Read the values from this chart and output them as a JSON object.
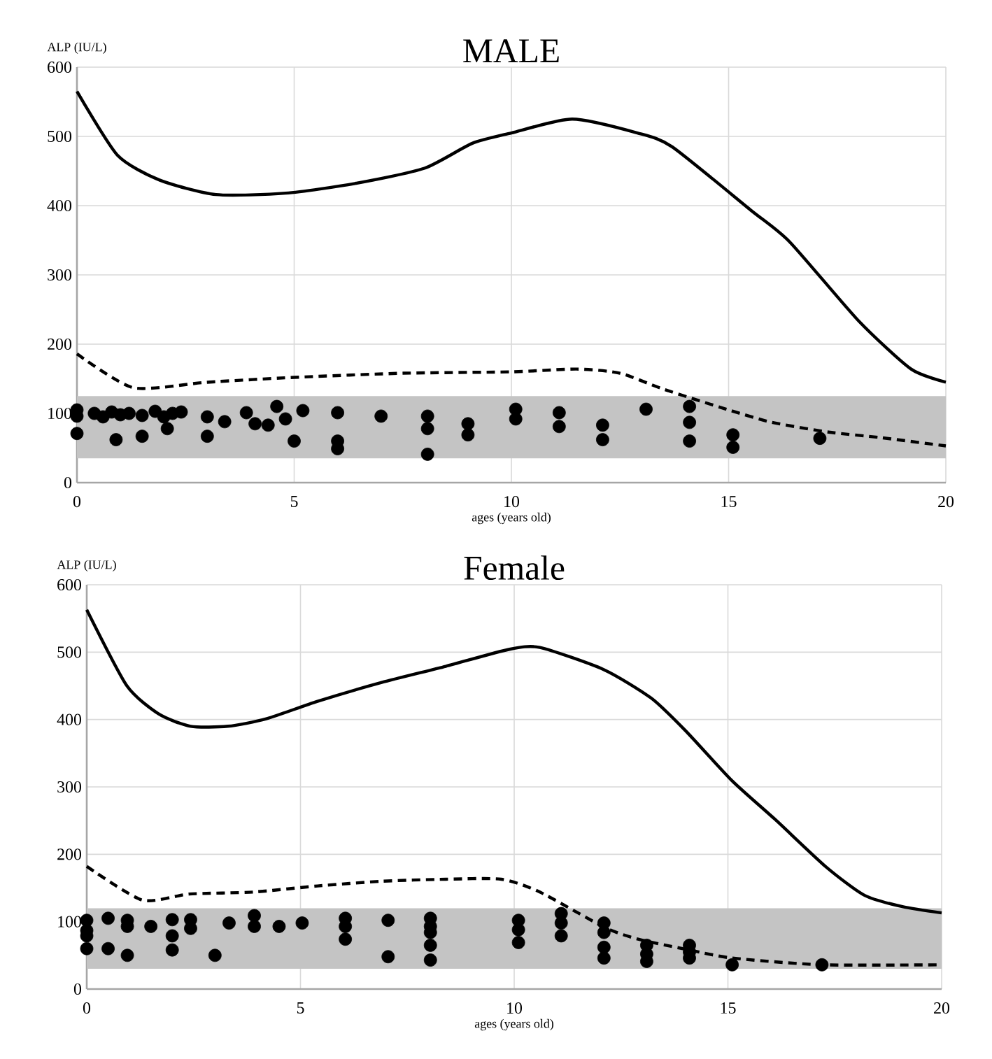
{
  "chart_data": [
    {
      "type": "line",
      "title": "MALE",
      "xlabel": "ages (years old)",
      "ylabel": "ALP (IU/L)",
      "xlim": [
        0,
        20
      ],
      "ylim": [
        0,
        600
      ],
      "xticks": [
        0,
        5,
        10,
        15,
        20
      ],
      "yticks": [
        0,
        100,
        200,
        300,
        400,
        500,
        600
      ],
      "grid": true,
      "bands": [
        {
          "axis": "y",
          "from": 35,
          "to": 125,
          "color": "#c4c4c4"
        }
      ],
      "series": [
        {
          "color": "#000000",
          "line_style": "solid",
          "x": [
            0,
            0.93,
            1.9,
            3.2,
            4.8,
            6.4,
            8.0,
            9.1,
            10.0,
            11.4,
            12.9,
            13.7,
            15.5,
            16.4,
            18.0,
            19.2,
            20
          ],
          "values": [
            565,
            473,
            437,
            416,
            418,
            432,
            454,
            490,
            505,
            525,
            505,
            485,
            394,
            348,
            233,
            164,
            145
          ]
        },
        {
          "color": "#000000",
          "line_style": "dashed",
          "x": [
            0,
            1.3,
            3,
            5,
            7.5,
            10,
            11.5,
            12.5,
            13.5,
            15,
            16,
            17.3,
            18.5,
            20
          ],
          "values": [
            186,
            137,
            145,
            152,
            158,
            160,
            164,
            158,
            135,
            105,
            87,
            73,
            65,
            53
          ]
        },
        {
          "type": "scatter",
          "color": "#000000",
          "marker": "circle",
          "x": [
            0,
            0,
            0,
            0.4,
            0.6,
            0.8,
            0.9,
            1.0,
            1.2,
            1.5,
            1.5,
            1.8,
            2.0,
            2.08,
            2.2,
            2.4,
            3.0,
            3.0,
            3.4,
            3.9,
            4.1,
            4.4,
            4.6,
            4.8,
            5.0,
            5.2,
            6.0,
            6.0,
            6.0,
            7.0,
            8.07,
            8.07,
            8.07,
            9.0,
            9.0,
            10.1,
            10.1,
            11.1,
            11.1,
            12.1,
            12.1,
            13.1,
            14.1,
            14.1,
            14.1,
            15.1,
            15.1,
            17.1
          ],
          "values": [
            105,
            96,
            71,
            100,
            95,
            102,
            62,
            98,
            100,
            97,
            67,
            103,
            95,
            78,
            100,
            102,
            95,
            67,
            88,
            101,
            85,
            83,
            110,
            92,
            60,
            104,
            101,
            60,
            49,
            96,
            96,
            78,
            41,
            85,
            69,
            106,
            92,
            101,
            81,
            83,
            62,
            106,
            110,
            87,
            60,
            69,
            51,
            64
          ]
        }
      ]
    },
    {
      "type": "line",
      "title": "Female",
      "xlabel": "ages (years old)",
      "ylabel": "ALP (IU/L)",
      "xlim": [
        0,
        20
      ],
      "ylim": [
        0,
        600
      ],
      "xticks": [
        0,
        5,
        10,
        15,
        20
      ],
      "yticks": [
        0,
        100,
        200,
        300,
        400,
        500,
        600
      ],
      "grid": true,
      "bands": [
        {
          "axis": "y",
          "from": 30,
          "to": 120,
          "color": "#c4c4c4"
        }
      ],
      "series": [
        {
          "color": "#000000",
          "line_style": "solid",
          "x": [
            0,
            0.94,
            1.69,
            2.43,
            3.3,
            4.2,
            5.4,
            6.9,
            8.4,
            9.87,
            10.6,
            12.1,
            13.2,
            14.0,
            15.1,
            16.1,
            17.3,
            18.2,
            19.1,
            20
          ],
          "values": [
            563,
            450,
            408,
            390,
            390,
            401,
            427,
            455,
            479,
            504,
            507,
            474,
            432,
            384,
            309,
            252,
            181,
            139,
            122,
            113
          ]
        },
        {
          "color": "#000000",
          "line_style": "dashed",
          "x": [
            0,
            1.3,
            2.4,
            3.9,
            5.4,
            6.9,
            8.4,
            9.7,
            10.6,
            12.1,
            12.9,
            14.1,
            15.1,
            17.2,
            20
          ],
          "values": [
            182,
            132,
            141,
            144,
            153,
            160,
            163,
            163,
            144,
            92,
            74,
            58,
            46,
            36,
            36
          ]
        },
        {
          "type": "scatter",
          "color": "#000000",
          "marker": "circle",
          "x": [
            0,
            0,
            0,
            0,
            0.5,
            0.5,
            0.95,
            0.95,
            0.95,
            1.5,
            2.0,
            2.0,
            2.0,
            2.43,
            2.43,
            3.0,
            3.33,
            3.92,
            3.92,
            4.5,
            5.04,
            6.05,
            6.05,
            6.05,
            7.05,
            7.05,
            8.04,
            8.04,
            8.04,
            8.04,
            8.04,
            10.1,
            10.1,
            10.1,
            11.1,
            11.1,
            11.1,
            12.1,
            12.1,
            12.1,
            12.1,
            13.1,
            13.1,
            13.1,
            14.1,
            14.1,
            14.1,
            15.1,
            17.2
          ],
          "values": [
            102,
            87,
            79,
            60,
            105,
            60,
            102,
            93,
            50,
            93,
            103,
            79,
            58,
            103,
            90,
            50,
            98,
            109,
            93,
            93,
            98,
            105,
            93,
            74,
            102,
            48,
            105,
            93,
            84,
            65,
            43,
            102,
            88,
            69,
            112,
            98,
            79,
            98,
            84,
            62,
            46,
            65,
            52,
            41,
            65,
            55,
            46,
            36,
            36
          ]
        }
      ]
    }
  ]
}
